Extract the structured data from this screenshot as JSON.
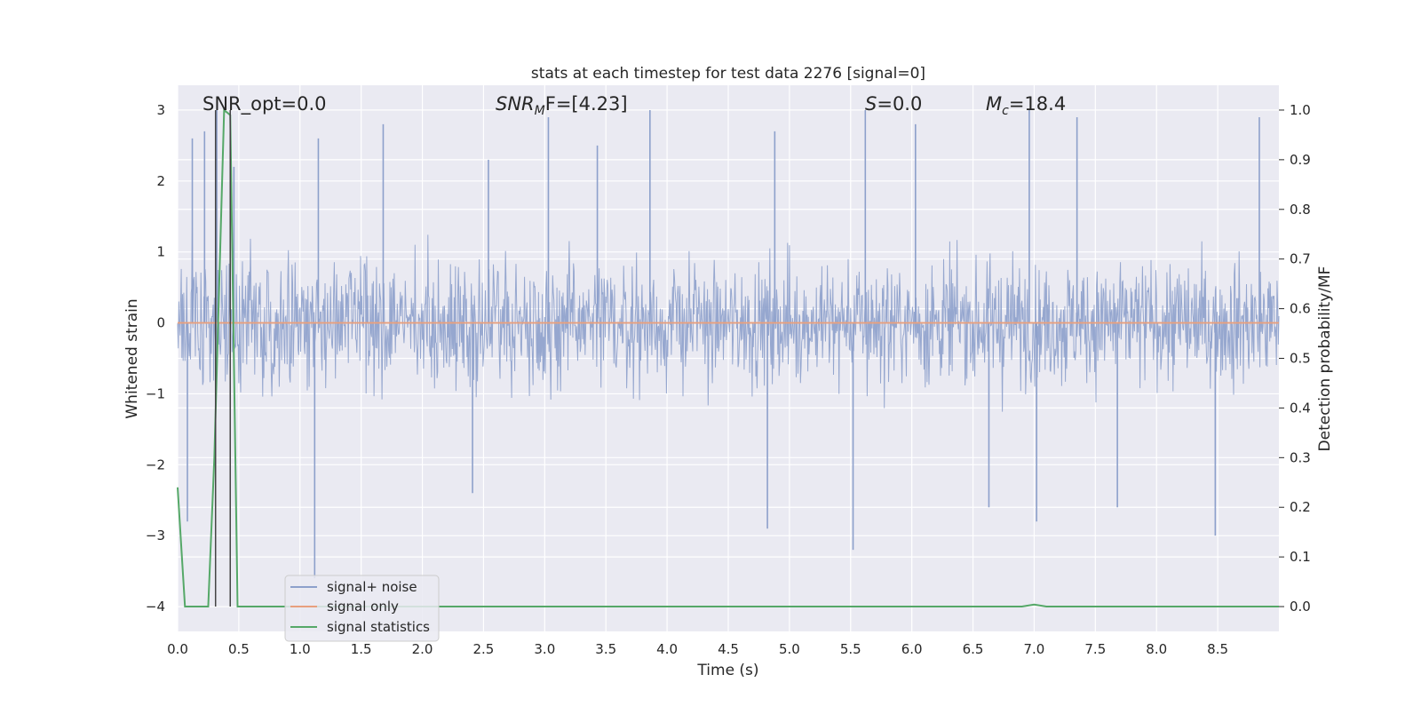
{
  "chart_data": {
    "type": "line",
    "title": "stats at each timestep for test data 2276 [signal=0]",
    "xlabel": "Time (s)",
    "ylabel_left": "Whitened strain",
    "ylabel_right": "Detection probability/MF",
    "xlim": [
      0.0,
      9.0
    ],
    "ylim_left": [
      -4.35,
      3.35
    ],
    "ylim_right": [
      -0.05,
      1.05
    ],
    "x_ticks": [
      "0.0",
      "0.5",
      "1.0",
      "1.5",
      "2.0",
      "2.5",
      "3.0",
      "3.5",
      "4.0",
      "4.5",
      "5.0",
      "5.5",
      "6.0",
      "6.5",
      "7.0",
      "7.5",
      "8.0",
      "8.5"
    ],
    "x_tick_values": [
      0.0,
      0.5,
      1.0,
      1.5,
      2.0,
      2.5,
      3.0,
      3.5,
      4.0,
      4.5,
      5.0,
      5.5,
      6.0,
      6.5,
      7.0,
      7.5,
      8.0,
      8.5
    ],
    "y_left_ticks": [
      "3",
      "2",
      "1",
      "0",
      "−1",
      "−2",
      "−3",
      "−4"
    ],
    "y_left_tick_values": [
      3,
      2,
      1,
      0,
      -1,
      -2,
      -3,
      -4
    ],
    "y_right_ticks": [
      "1.0",
      "0.9",
      "0.8",
      "0.7",
      "0.6",
      "0.5",
      "0.4",
      "0.3",
      "0.2",
      "0.1",
      "0.0"
    ],
    "y_right_tick_values": [
      1.0,
      0.9,
      0.8,
      0.7,
      0.6,
      0.5,
      0.4,
      0.3,
      0.2,
      0.1,
      0.0
    ],
    "grid": true,
    "legend_placement": "lower-left",
    "annotations": {
      "snr_opt": "SNR_opt=0.0",
      "snr_mf_main": "SNR",
      "snr_mf_sub": "M",
      "snr_mf_rest": "F=[4.23]",
      "s_main": "S",
      "s_rest": "=0.0",
      "mc_main": "M",
      "mc_sub": "c",
      "mc_rest": "=18.4"
    },
    "vertical_markers_x": [
      0.31,
      0.43
    ],
    "series": [
      {
        "name": "signal+ noise",
        "axis": "left",
        "color": "#8da0cb",
        "style": "noise",
        "summary": {
          "typical_upper": 1.5,
          "typical_lower": -1.5,
          "max": 3.0,
          "min": -3.6
        },
        "peaks": [
          [
            0.08,
            -2.8
          ],
          [
            0.12,
            2.6
          ],
          [
            0.22,
            2.7
          ],
          [
            0.32,
            3.0
          ],
          [
            0.46,
            2.2
          ],
          [
            1.12,
            -3.6
          ],
          [
            1.15,
            2.6
          ],
          [
            1.68,
            2.8
          ],
          [
            2.41,
            -2.4
          ],
          [
            2.54,
            2.3
          ],
          [
            3.03,
            2.9
          ],
          [
            3.43,
            2.5
          ],
          [
            3.86,
            3.0
          ],
          [
            4.82,
            -2.9
          ],
          [
            4.88,
            2.7
          ],
          [
            5.52,
            -3.2
          ],
          [
            5.62,
            3.0
          ],
          [
            6.03,
            2.8
          ],
          [
            6.63,
            -2.6
          ],
          [
            6.96,
            3.0
          ],
          [
            7.02,
            -2.8
          ],
          [
            7.35,
            2.9
          ],
          [
            7.68,
            -2.6
          ],
          [
            8.48,
            -3.0
          ],
          [
            8.84,
            2.9
          ]
        ]
      },
      {
        "name": "signal only",
        "axis": "left",
        "color": "#e8a07e",
        "points": [
          [
            0.0,
            0.0
          ],
          [
            9.0,
            0.0
          ]
        ]
      },
      {
        "name": "signal statistics",
        "axis": "right",
        "color": "#55a868",
        "points": [
          [
            0.0,
            0.24
          ],
          [
            0.06,
            0.0
          ],
          [
            0.25,
            0.0
          ],
          [
            0.3,
            0.3
          ],
          [
            0.38,
            1.0
          ],
          [
            0.43,
            0.99
          ],
          [
            0.49,
            0.0
          ],
          [
            6.9,
            0.0
          ],
          [
            7.0,
            0.004
          ],
          [
            7.1,
            0.0
          ],
          [
            9.0,
            0.0
          ]
        ]
      }
    ]
  }
}
